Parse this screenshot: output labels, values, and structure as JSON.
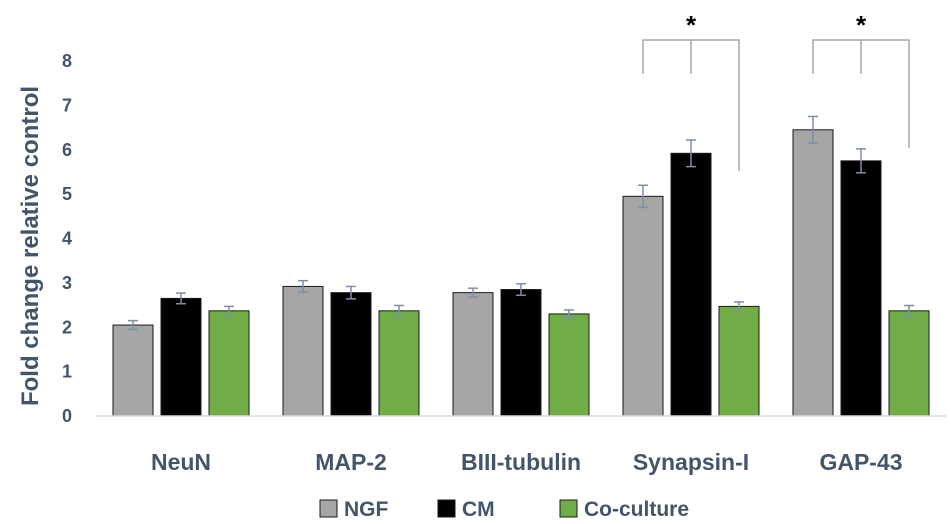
{
  "chart_data": {
    "type": "bar",
    "title": "",
    "xlabel": "",
    "ylabel": "Fold change relative control",
    "ylim": [
      0,
      8
    ],
    "yticks": [
      "0",
      "1",
      "2",
      "3",
      "4",
      "5",
      "6",
      "7",
      "8"
    ],
    "categories": [
      "NeuN",
      "MAP-2",
      "BIII-tubulin",
      "Synapsin-I",
      "GAP-43"
    ],
    "series": [
      {
        "name": "NGF",
        "color": "#a6a6a6",
        "values": [
          2.05,
          2.92,
          2.78,
          4.95,
          6.45
        ],
        "errors": [
          0.1,
          0.13,
          0.1,
          0.25,
          0.3
        ]
      },
      {
        "name": "CM",
        "color": "#000000",
        "values": [
          2.65,
          2.78,
          2.85,
          5.92,
          5.75
        ],
        "errors": [
          0.12,
          0.14,
          0.13,
          0.3,
          0.27
        ]
      },
      {
        "name": "Co-culture",
        "color": "#70ad47",
        "values": [
          2.37,
          2.37,
          2.3,
          2.47,
          2.37
        ],
        "errors": [
          0.1,
          0.12,
          0.09,
          0.1,
          0.12
        ]
      }
    ],
    "annotations": [
      {
        "text": "*",
        "category": "Synapsin-I"
      },
      {
        "text": "*",
        "category": "GAP-43"
      }
    ],
    "legend": "bottom",
    "grid": false
  }
}
